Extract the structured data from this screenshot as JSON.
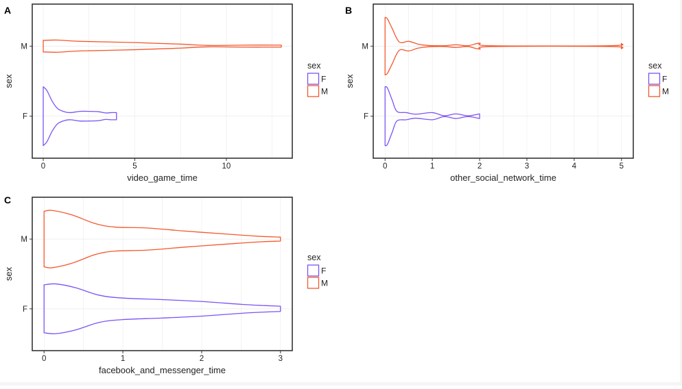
{
  "colors": {
    "F": "#7b52f5",
    "M": "#f4572b",
    "frame": "#333333",
    "grid": "#ebebeb",
    "text": "#222222"
  },
  "chart_data": [
    {
      "panel_label": "A",
      "type": "violin",
      "orientation": "horizontal",
      "title": "",
      "xlabel": "video_game_time",
      "ylabel": "sex",
      "xlim": [
        -0.6,
        13.6
      ],
      "xticks": [
        0,
        5,
        10
      ],
      "categories": [
        "F",
        "M"
      ],
      "legend": {
        "title": "sex",
        "entries": [
          "F",
          "M"
        ],
        "position": "right"
      },
      "grid": true,
      "series": [
        {
          "name": "F",
          "range": [
            0,
            4
          ],
          "density_profile": [
            [
              0,
              0.92
            ],
            [
              0.2,
              0.8
            ],
            [
              0.5,
              0.45
            ],
            [
              0.8,
              0.22
            ],
            [
              1.2,
              0.12
            ],
            [
              1.5,
              0.1
            ],
            [
              2.0,
              0.14
            ],
            [
              2.5,
              0.14
            ],
            [
              3.0,
              0.13
            ],
            [
              3.4,
              0.09
            ],
            [
              3.7,
              0.1
            ],
            [
              4.0,
              0.1
            ]
          ]
        },
        {
          "name": "M",
          "range": [
            0,
            13
          ],
          "density_profile": [
            [
              0,
              0.17
            ],
            [
              0.8,
              0.18
            ],
            [
              2.0,
              0.14
            ],
            [
              5.0,
              0.1
            ],
            [
              7.5,
              0.05
            ],
            [
              9.0,
              0.01
            ],
            [
              11.0,
              0.02
            ],
            [
              13.0,
              0.02
            ]
          ]
        }
      ]
    },
    {
      "panel_label": "B",
      "type": "violin",
      "orientation": "horizontal",
      "title": "",
      "xlabel": "other_social_network_time",
      "ylabel": "sex",
      "xlim": [
        -0.25,
        5.25
      ],
      "xticks": [
        0,
        1,
        2,
        3,
        4,
        5
      ],
      "categories": [
        "F",
        "M"
      ],
      "legend": {
        "title": "sex",
        "entries": [
          "F",
          "M"
        ],
        "position": "right"
      },
      "grid": true,
      "series": [
        {
          "name": "F",
          "range": [
            0,
            2
          ],
          "density_profile": [
            [
              0,
              0.92
            ],
            [
              0.05,
              0.88
            ],
            [
              0.15,
              0.5
            ],
            [
              0.25,
              0.14
            ],
            [
              0.45,
              0.1
            ],
            [
              0.65,
              0.05
            ],
            [
              1.0,
              0.1
            ],
            [
              1.25,
              0.0
            ],
            [
              1.5,
              0.06
            ],
            [
              1.75,
              0.0
            ],
            [
              2.0,
              0.06
            ]
          ]
        },
        {
          "name": "M",
          "range": [
            0,
            5
          ],
          "density_profile": [
            [
              0,
              0.9
            ],
            [
              0.05,
              0.85
            ],
            [
              0.15,
              0.55
            ],
            [
              0.3,
              0.12
            ],
            [
              0.5,
              0.14
            ],
            [
              0.7,
              0.05
            ],
            [
              0.9,
              0.01
            ],
            [
              1.25,
              0.0
            ],
            [
              1.5,
              0.03
            ],
            [
              1.75,
              0.0
            ],
            [
              2.0,
              0.08
            ],
            [
              2.25,
              0.0
            ],
            [
              4.75,
              0.0
            ],
            [
              5.0,
              0.07
            ]
          ]
        }
      ]
    },
    {
      "panel_label": "C",
      "type": "violin",
      "orientation": "horizontal",
      "title": "",
      "xlabel": "facebook_and_messenger_time",
      "ylabel": "sex",
      "xlim": [
        -0.15,
        3.15
      ],
      "xticks": [
        0,
        1,
        2,
        3
      ],
      "categories": [
        "F",
        "M"
      ],
      "legend": {
        "title": "sex",
        "entries": [
          "F",
          "M"
        ],
        "position": "right"
      },
      "grid": true,
      "series": [
        {
          "name": "F",
          "range": [
            0,
            3
          ],
          "density_profile": [
            [
              0,
              0.75
            ],
            [
              0.15,
              0.78
            ],
            [
              0.4,
              0.66
            ],
            [
              0.7,
              0.42
            ],
            [
              1.0,
              0.33
            ],
            [
              1.5,
              0.28
            ],
            [
              2.0,
              0.22
            ],
            [
              2.5,
              0.13
            ],
            [
              2.8,
              0.09
            ],
            [
              3.0,
              0.07
            ]
          ]
        },
        {
          "name": "M",
          "range": [
            0,
            3
          ],
          "density_profile": [
            [
              0,
              0.87
            ],
            [
              0.1,
              0.9
            ],
            [
              0.35,
              0.76
            ],
            [
              0.65,
              0.48
            ],
            [
              0.9,
              0.37
            ],
            [
              1.3,
              0.34
            ],
            [
              1.8,
              0.24
            ],
            [
              2.3,
              0.15
            ],
            [
              2.7,
              0.08
            ],
            [
              3.0,
              0.05
            ]
          ]
        }
      ]
    }
  ]
}
